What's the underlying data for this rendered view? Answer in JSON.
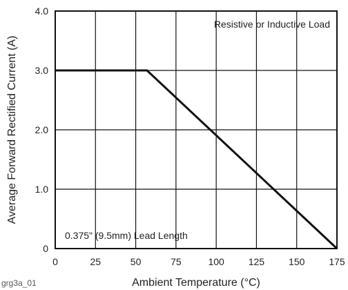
{
  "figure_id": "grg3a_01",
  "chart_data": {
    "type": "line",
    "xlabel": "Ambient Temperature (°C)",
    "ylabel": "Average Forward Rectified Current (A)",
    "xlim": [
      0,
      175
    ],
    "ylim": [
      0,
      4.0
    ],
    "xticks": [
      "0",
      "25",
      "50",
      "75",
      "100",
      "125",
      "150",
      "175"
    ],
    "yticks": [
      "0",
      "1.0",
      "2.0",
      "3.0",
      "4.0"
    ],
    "grid": true,
    "series": [
      {
        "x": [
          0,
          57,
          175
        ],
        "y": [
          3.0,
          3.0,
          0
        ],
        "color": "#111111"
      }
    ],
    "annotations": [
      "Resistive or Inductive Load",
      "0.375\" (9.5mm) Lead Length"
    ]
  }
}
